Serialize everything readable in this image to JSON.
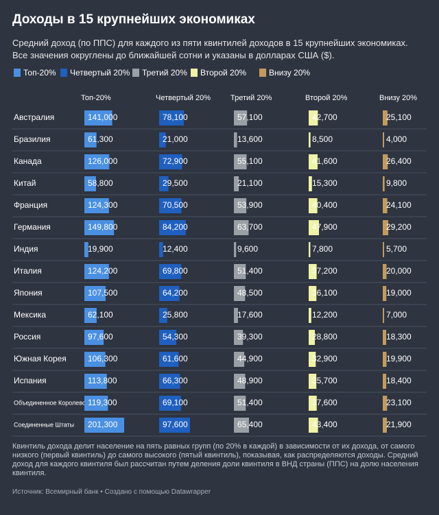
{
  "header": {
    "title": "Доходы в 15 крупнейших экономиках",
    "subtitle": "Средний доход (по ППС) для каждого из пяти квинтилей доходов в 15 крупнейших экономиках. Все значения округлены до ближайшей сотни и указаны в долларах США ($)."
  },
  "legend": [
    {
      "label": "Топ-20%",
      "color": "#4a90e2"
    },
    {
      "label": "Четвертый 20%",
      "color": "#1f5fbf"
    },
    {
      "label": "Третий 20%",
      "color": "#9aa0a6"
    },
    {
      "label": "Второй 20%",
      "color": "#eef3a6"
    },
    {
      "label": "Внизу 20%",
      "color": "#c49a5c"
    }
  ],
  "table": {
    "columns": [
      "Топ-20%",
      "Четвертый 20%",
      "Третий 20%",
      "Второй 20%",
      "Внизу 20%"
    ],
    "rows": [
      [
        "Австралия",
        "141,000",
        "78,100",
        "57,100",
        "42,700",
        "25,100"
      ],
      [
        "Бразилия",
        "61,300",
        "21,000",
        "13,600",
        "8,500",
        "4,000"
      ],
      [
        "Канада",
        "126,000",
        "72,900",
        "55,100",
        "41,600",
        "26,400"
      ],
      [
        "Китай",
        "58,800",
        "29,500",
        "21,100",
        "15,300",
        "9,800"
      ],
      [
        "Франция",
        "124,300",
        "70,500",
        "53,900",
        "40,400",
        "24,100"
      ],
      [
        "Германия",
        "149,800",
        "84,200",
        "63,700",
        "47,900",
        "29,200"
      ],
      [
        "Индия",
        "19,900",
        "12,400",
        "9,600",
        "7,800",
        "5,700"
      ],
      [
        "Италия",
        "124,200",
        "69,800",
        "51,400",
        "37,200",
        "20,000"
      ],
      [
        "Япония",
        "107,500",
        "64,200",
        "48,500",
        "36,100",
        "19,000"
      ],
      [
        "Мексика",
        "62,100",
        "25,800",
        "17,600",
        "12,200",
        "7,000"
      ],
      [
        "Россия",
        "97,600",
        "54,300",
        "39,300",
        "28,800",
        "18,300"
      ],
      [
        "Южная Корея",
        "106,300",
        "61,600",
        "44,900",
        "32,900",
        "19,900"
      ],
      [
        "Испания",
        "113,800",
        "66,300",
        "48,900",
        "35,700",
        "18,400"
      ],
      [
        "Объединенное Королевство",
        "119,300",
        "69,100",
        "51,400",
        "37,600",
        "23,100"
      ],
      [
        "Соединенные Штаты",
        "201,300",
        "97,600",
        "65,400",
        "43,400",
        "21,900"
      ]
    ]
  },
  "footer": {
    "note": "Квинтиль дохода делит население на пять равных групп (по 20% в каждой) в зависимости от их дохода, от самого низкого (первый квинтиль) до самого высокого (пятый квинтиль), показывая, как распределяются доходы. Средний доход для каждого квинтиля был рассчитан путем деления доли квинтиля в ВНД страны (ППС) на долю населения квинтиля.",
    "source": "Источник: Всемирный банк • Создано с помощью Datawrapper"
  }
}
